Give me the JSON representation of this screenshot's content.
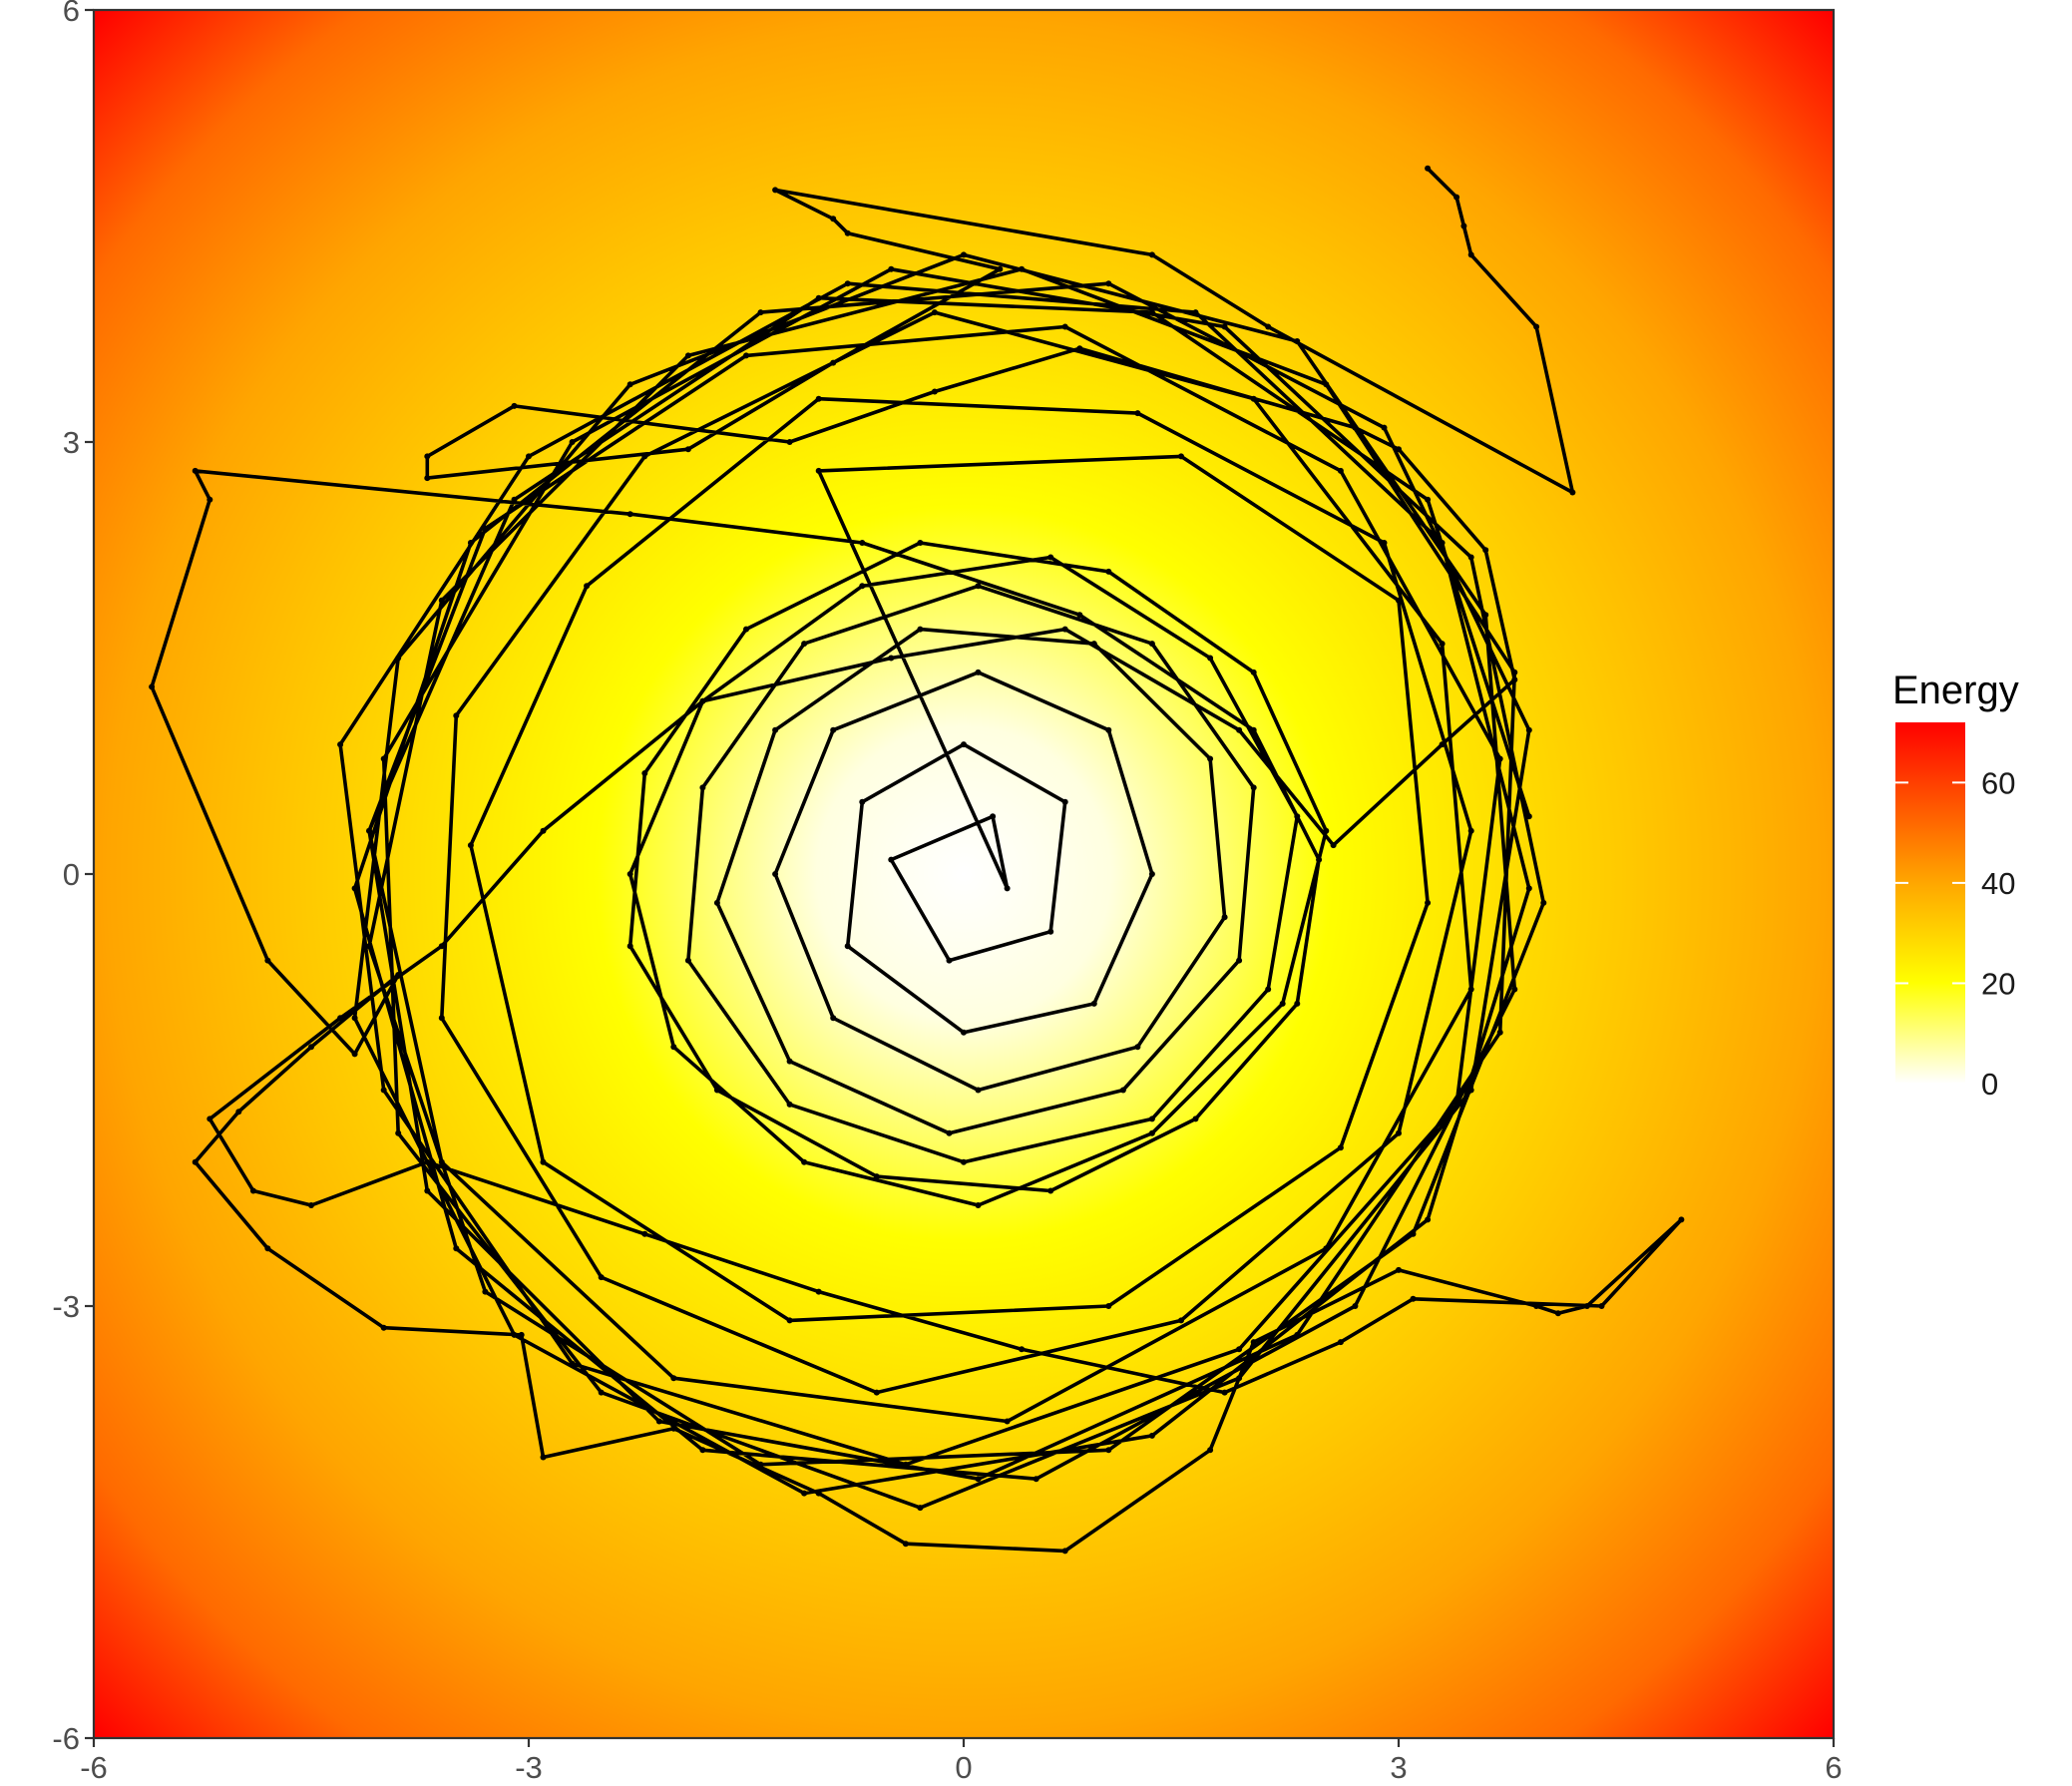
{
  "chart_data": {
    "type": "line",
    "title": "",
    "xlabel": "",
    "ylabel": "",
    "xlim": [
      -6,
      6
    ],
    "ylim": [
      -6,
      6
    ],
    "x_ticks": [
      -6,
      -3,
      0,
      3,
      6
    ],
    "y_ticks": [
      -6,
      -3,
      0,
      3,
      6
    ],
    "x_tick_labels": [
      "-6",
      "-3",
      "0",
      "3",
      "6"
    ],
    "y_tick_labels": [
      "-6",
      "-3",
      "0",
      "3",
      "6"
    ],
    "grid": false,
    "background": "energy field E(x,y) = x^2 + y^2, shown as a color gradient",
    "path_color": "#000000",
    "path_description": "random-walk trajectory of roughly 2000 steps, densest near the center and spreading to a radius of about 5.5",
    "series": [
      {
        "values": [
          [
            3.2,
            4.9
          ],
          [
            3.4,
            4.7
          ],
          [
            3.45,
            4.5
          ],
          [
            3.5,
            4.3
          ],
          [
            3.95,
            3.8
          ],
          [
            4.2,
            2.65
          ],
          [
            2.1,
            3.8
          ],
          [
            1.3,
            4.3
          ],
          [
            -1.3,
            4.75
          ],
          [
            -0.9,
            4.55
          ],
          [
            -0.8,
            4.45
          ],
          [
            0.25,
            4.2
          ],
          [
            -0.9,
            3.55
          ],
          [
            -1.9,
            2.95
          ],
          [
            -3.7,
            2.75
          ],
          [
            -3.7,
            2.9
          ],
          [
            -3.1,
            3.25
          ],
          [
            -1.2,
            3.0
          ],
          [
            -0.2,
            3.35
          ],
          [
            0.8,
            3.65
          ],
          [
            2.7,
            3.1
          ],
          [
            3.0,
            2.95
          ],
          [
            3.6,
            2.25
          ],
          [
            3.8,
            1.35
          ],
          [
            3.3,
            0.9
          ],
          [
            2.55,
            0.2
          ],
          [
            1.9,
            1.0
          ],
          [
            0.7,
            1.7
          ],
          [
            -0.5,
            1.5
          ],
          [
            -1.8,
            1.2
          ],
          [
            -2.9,
            0.3
          ],
          [
            -3.6,
            -0.5
          ],
          [
            -4.3,
            -1.0
          ],
          [
            -5.2,
            -1.7
          ],
          [
            -4.9,
            -2.2
          ],
          [
            -4.5,
            -2.3
          ],
          [
            -3.7,
            -2.0
          ],
          [
            -2.2,
            -2.5
          ],
          [
            -1.0,
            -2.9
          ],
          [
            0.4,
            -3.3
          ],
          [
            1.8,
            -3.6
          ],
          [
            2.6,
            -3.25
          ],
          [
            3.1,
            -2.95
          ],
          [
            4.4,
            -3.0
          ],
          [
            4.95,
            -2.4
          ],
          [
            4.3,
            -3.0
          ],
          [
            4.1,
            -3.05
          ],
          [
            3.95,
            -3.0
          ],
          [
            3.0,
            -2.75
          ],
          [
            2.0,
            -3.25
          ],
          [
            1.7,
            -4.0
          ],
          [
            0.7,
            -4.7
          ],
          [
            -0.4,
            -4.65
          ],
          [
            -1.0,
            -4.3
          ],
          [
            -2.0,
            -3.85
          ],
          [
            -2.9,
            -4.05
          ],
          [
            -3.05,
            -3.2
          ],
          [
            -4.0,
            -3.15
          ],
          [
            -4.8,
            -2.6
          ],
          [
            -5.3,
            -2.0
          ],
          [
            -5.0,
            -1.65
          ],
          [
            -4.5,
            -1.2
          ],
          [
            -3.9,
            -0.7
          ],
          [
            -4.2,
            -1.25
          ],
          [
            -4.8,
            -0.6
          ],
          [
            -5.6,
            1.3
          ],
          [
            -5.2,
            2.6
          ],
          [
            -5.3,
            2.8
          ],
          [
            -2.3,
            2.5
          ],
          [
            -0.7,
            2.3
          ],
          [
            0.8,
            1.8
          ],
          [
            2.0,
            1.0
          ],
          [
            2.45,
            0.1
          ],
          [
            2.3,
            -0.9
          ],
          [
            1.6,
            -1.7
          ],
          [
            0.6,
            -2.2
          ],
          [
            -0.6,
            -2.1
          ],
          [
            -1.7,
            -1.5
          ],
          [
            -2.3,
            -0.5
          ],
          [
            -2.2,
            0.7
          ],
          [
            -1.5,
            1.7
          ],
          [
            -0.3,
            2.3
          ],
          [
            1.0,
            2.1
          ],
          [
            2.0,
            1.4
          ],
          [
            2.5,
            0.3
          ],
          [
            2.2,
            -0.9
          ],
          [
            1.3,
            -1.8
          ],
          [
            0.1,
            -2.3
          ],
          [
            -1.1,
            -2.0
          ],
          [
            -2.0,
            -1.2
          ],
          [
            -2.3,
            0.0
          ],
          [
            -1.8,
            1.2
          ],
          [
            -0.7,
            2.0
          ],
          [
            0.6,
            2.2
          ],
          [
            1.7,
            1.5
          ],
          [
            2.3,
            0.4
          ],
          [
            2.1,
            -0.8
          ],
          [
            1.3,
            -1.7
          ],
          [
            0.0,
            -2.0
          ],
          [
            -1.2,
            -1.6
          ],
          [
            -1.9,
            -0.6
          ],
          [
            -1.8,
            0.6
          ],
          [
            -1.1,
            1.6
          ],
          [
            0.1,
            2.0
          ],
          [
            1.3,
            1.6
          ],
          [
            2.0,
            0.6
          ],
          [
            1.9,
            -0.6
          ],
          [
            1.1,
            -1.5
          ],
          [
            -0.1,
            -1.8
          ],
          [
            -1.2,
            -1.3
          ],
          [
            -1.7,
            -0.2
          ],
          [
            -1.3,
            1.0
          ],
          [
            -0.3,
            1.7
          ],
          [
            0.9,
            1.6
          ],
          [
            1.7,
            0.8
          ],
          [
            1.8,
            -0.3
          ],
          [
            1.2,
            -1.2
          ],
          [
            0.1,
            -1.5
          ],
          [
            -0.9,
            -1.0
          ],
          [
            -1.3,
            0.0
          ],
          [
            -0.9,
            1.0
          ],
          [
            0.1,
            1.4
          ],
          [
            1.0,
            1.0
          ],
          [
            1.3,
            0.0
          ],
          [
            0.9,
            -0.9
          ],
          [
            0.0,
            -1.1
          ],
          [
            -0.8,
            -0.5
          ],
          [
            -0.7,
            0.5
          ],
          [
            0.0,
            0.9
          ],
          [
            0.7,
            0.5
          ],
          [
            0.6,
            -0.4
          ],
          [
            -0.1,
            -0.6
          ],
          [
            -0.5,
            0.1
          ],
          [
            0.2,
            0.4
          ],
          [
            0.3,
            -0.1
          ],
          [
            -1.0,
            2.8
          ],
          [
            1.5,
            2.9
          ],
          [
            3.0,
            1.9
          ],
          [
            3.2,
            -0.2
          ],
          [
            2.6,
            -1.9
          ],
          [
            1.0,
            -3.0
          ],
          [
            -1.2,
            -3.1
          ],
          [
            -2.9,
            -2.0
          ],
          [
            -3.4,
            0.2
          ],
          [
            -2.6,
            2.0
          ],
          [
            -1.0,
            3.3
          ],
          [
            1.2,
            3.2
          ],
          [
            2.9,
            2.3
          ],
          [
            3.5,
            0.3
          ],
          [
            3.0,
            -1.8
          ],
          [
            1.5,
            -3.1
          ],
          [
            -0.6,
            -3.6
          ],
          [
            -2.5,
            -2.8
          ],
          [
            -3.6,
            -1.0
          ],
          [
            -3.5,
            1.1
          ],
          [
            -2.2,
            2.9
          ],
          [
            -0.2,
            3.9
          ],
          [
            2.0,
            3.3
          ],
          [
            3.3,
            1.6
          ],
          [
            3.5,
            -0.8
          ],
          [
            2.5,
            -2.6
          ],
          [
            0.3,
            -3.8
          ],
          [
            -2.0,
            -3.5
          ],
          [
            -3.6,
            -2.0
          ],
          [
            -4.1,
            0.3
          ],
          [
            -3.3,
            2.4
          ],
          [
            -1.5,
            3.6
          ],
          [
            0.7,
            3.8
          ],
          [
            2.6,
            2.8
          ],
          [
            3.7,
            0.8
          ],
          [
            3.4,
            -1.6
          ],
          [
            1.9,
            -3.3
          ],
          [
            -0.4,
            -4.1
          ],
          [
            -2.7,
            -3.4
          ],
          [
            -4.0,
            -1.5
          ],
          [
            -4.3,
            0.9
          ],
          [
            -3.0,
            2.9
          ],
          [
            -0.8,
            4.1
          ],
          [
            1.6,
            3.9
          ],
          [
            3.3,
            2.3
          ],
          [
            3.9,
            -0.1
          ],
          [
            3.2,
            -2.4
          ],
          [
            1.3,
            -3.9
          ],
          [
            -1.1,
            -4.3
          ],
          [
            -3.1,
            -3.2
          ],
          [
            -4.2,
            -1.0
          ],
          [
            -3.9,
            1.5
          ],
          [
            -2.3,
            3.4
          ],
          [
            0.0,
            4.3
          ],
          [
            2.3,
            3.7
          ],
          [
            3.6,
            1.8
          ],
          [
            3.8,
            -0.8
          ],
          [
            2.7,
            -3.0
          ],
          [
            0.5,
            -4.2
          ],
          [
            -1.8,
            -4.0
          ],
          [
            -3.5,
            -2.6
          ],
          [
            -4.2,
            -0.1
          ],
          [
            -3.4,
            2.3
          ],
          [
            -1.4,
            3.9
          ],
          [
            1.0,
            4.1
          ],
          [
            2.9,
            3.1
          ],
          [
            3.9,
            1.0
          ],
          [
            3.5,
            -1.5
          ],
          [
            1.9,
            -3.5
          ],
          [
            -0.3,
            -4.4
          ],
          [
            -2.5,
            -3.6
          ],
          [
            -3.9,
            -1.8
          ],
          [
            -4.0,
            0.8
          ],
          [
            -2.7,
            3.0
          ],
          [
            -0.5,
            4.2
          ],
          [
            1.8,
            3.8
          ],
          [
            3.5,
            2.2
          ],
          [
            4.0,
            -0.2
          ],
          [
            3.1,
            -2.5
          ],
          [
            1.0,
            -4.0
          ],
          [
            -1.4,
            -4.1
          ],
          [
            -3.3,
            -2.9
          ],
          [
            -4.1,
            -0.5
          ],
          [
            -3.6,
            1.9
          ],
          [
            -1.9,
            3.6
          ],
          [
            0.4,
            4.2
          ],
          [
            2.5,
            3.4
          ],
          [
            3.8,
            1.4
          ],
          [
            3.7,
            -1.1
          ],
          [
            2.3,
            -3.2
          ],
          [
            0.1,
            -4.2
          ],
          [
            -2.1,
            -3.8
          ],
          [
            -3.7,
            -2.2
          ],
          [
            -4.1,
            0.3
          ],
          [
            -3.1,
            2.6
          ],
          [
            -1.0,
            4.0
          ],
          [
            1.3,
            3.9
          ],
          [
            3.2,
            2.6
          ],
          [
            3.9,
            0.4
          ]
        ]
      }
    ],
    "legend": {
      "title": "Energy",
      "position": "right",
      "type": "colorbar",
      "ticks": [
        0,
        20,
        40,
        60
      ],
      "tick_labels": [
        "0",
        "20",
        "40",
        "60"
      ],
      "range": [
        0,
        72
      ],
      "colors": [
        "#ffffff",
        "#ffff00",
        "#ffa500",
        "#ff0000"
      ]
    }
  }
}
